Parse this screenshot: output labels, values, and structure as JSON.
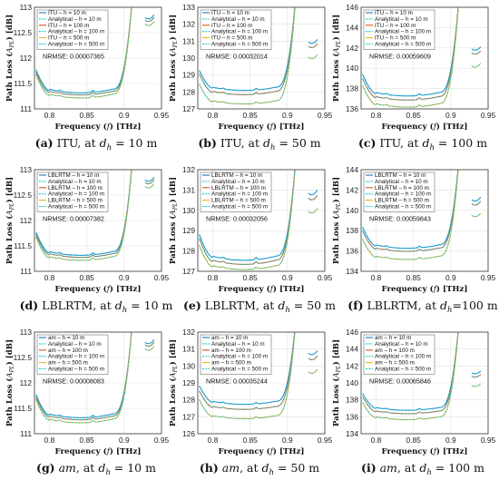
{
  "colors": {
    "h10": "#1f77c4",
    "h100": "#d9541a",
    "h500": "#eeb11f",
    "analytical": "#00c8d4"
  },
  "chart_data": [
    {
      "id": "a",
      "type": "line",
      "caption_parts": [
        "(a)",
        " ITU, at ",
        "d",
        "h",
        " = 10 m"
      ],
      "ylim": [
        111,
        113
      ],
      "yticks": [
        111,
        111.5,
        112,
        112.5,
        113
      ],
      "ytick_labels": [
        "111",
        "111.5",
        "112",
        "112.5",
        "113"
      ],
      "xlim": [
        0.78,
        0.95
      ],
      "xticks": [
        0.8,
        0.85,
        0.9,
        0.95
      ],
      "xtick_labels": [
        "0.8",
        "0.85",
        "0.9",
        "0.95"
      ],
      "xlabel": "Frequency (f) [THz]",
      "ylabel": "Path Loss (A_PL) [dB]",
      "nrmse": "NRMSE: 0.00007365",
      "legend": [
        "ITU – h = 10 m",
        "Analytical – h = 10 m",
        "ITU – h = 100 m",
        "Analytical – h = 100 m",
        "ITU – h = 500 m",
        "Analytical – h = 500 m"
      ],
      "series": [
        {
          "name": "h = 10 m",
          "min": 111.3,
          "high": 112.05,
          "win": [
            112.75,
            112.85
          ]
        },
        {
          "name": "h = 100 m",
          "min": 111.26,
          "high": 112.0,
          "win": [
            112.7,
            112.8
          ]
        },
        {
          "name": "h = 500 m",
          "min": 111.2,
          "high": 111.95,
          "win": [
            112.62,
            112.72
          ]
        }
      ]
    },
    {
      "id": "b",
      "type": "line",
      "caption_parts": [
        "(b)",
        " ITU, at ",
        "d",
        "h",
        " = 50 m"
      ],
      "ylim": [
        127,
        133
      ],
      "yticks": [
        127,
        128,
        129,
        130,
        131,
        132,
        133
      ],
      "ytick_labels": [
        "127",
        "128",
        "129",
        "130",
        "131",
        "132",
        "133"
      ],
      "xlim": [
        0.78,
        0.95
      ],
      "xticks": [
        0.8,
        0.85,
        0.9,
        0.95
      ],
      "xtick_labels": [
        "0.8",
        "0.85",
        "0.9",
        "0.95"
      ],
      "xlabel": "Frequency (f) [THz]",
      "ylabel": "Path Loss (A_PL) [dB]",
      "nrmse": "NRMSE: 0.00032014",
      "legend": [
        "ITU – h = 10 m",
        "Analytical – h = 10 m",
        "ITU – h = 100 m",
        "Analytical – h = 100 m",
        "ITU – h = 500 m",
        "Analytical – h = 500 m"
      ],
      "series": [
        {
          "name": "h = 10 m",
          "min": 128.05,
          "high": 130.0,
          "win": [
            130.8,
            131.1
          ]
        },
        {
          "name": "h = 100 m",
          "min": 127.8,
          "high": 129.8,
          "win": [
            130.55,
            130.85
          ]
        },
        {
          "name": "h = 500 m",
          "min": 127.25,
          "high": 129.2,
          "win": [
            129.9,
            130.2
          ]
        }
      ]
    },
    {
      "id": "c",
      "type": "line",
      "caption_parts": [
        "(c)",
        " ITU, at ",
        "d",
        "h",
        " = 100 m"
      ],
      "ylim": [
        136,
        146
      ],
      "yticks": [
        136,
        138,
        140,
        142,
        144,
        146
      ],
      "ytick_labels": [
        "136",
        "138",
        "140",
        "142",
        "144",
        "146"
      ],
      "xlim": [
        0.78,
        0.95
      ],
      "xticks": [
        0.8,
        0.85,
        0.9,
        0.95
      ],
      "xtick_labels": [
        "0.8",
        "0.85",
        "0.9",
        "0.95"
      ],
      "xlabel": "Frequency (f) [THz]",
      "ylabel": "Path Loss (A_PL) [dB]",
      "nrmse": "NRMSE: 0.00059609",
      "legend": [
        "ITU – h = 10 m",
        "Analytical – h = 10 m",
        "ITU – h = 100 m",
        "Analytical – h = 100 m",
        "ITU – h = 500 m",
        "Analytical – h = 500 m"
      ],
      "series": [
        {
          "name": "h = 10 m",
          "min": 137.2,
          "high": 140.7,
          "win": [
            141.7,
            142.1
          ]
        },
        {
          "name": "h = 100 m",
          "min": 136.8,
          "high": 140.3,
          "win": [
            141.3,
            141.7
          ]
        },
        {
          "name": "h = 500 m",
          "min": 136.1,
          "high": 139.6,
          "win": [
            140.0,
            140.5
          ]
        }
      ]
    },
    {
      "id": "d",
      "type": "line",
      "caption_parts": [
        "(d)",
        " LBLRTM, at ",
        "d",
        "h",
        " = 10 m"
      ],
      "ylim": [
        111,
        113
      ],
      "yticks": [
        111,
        111.5,
        112,
        112.5,
        113
      ],
      "ytick_labels": [
        "111",
        "111.5",
        "112",
        "112.5",
        "113"
      ],
      "xlim": [
        0.78,
        0.95
      ],
      "xticks": [
        0.8,
        0.85,
        0.9,
        0.95
      ],
      "xtick_labels": [
        "0.8",
        "0.85",
        "0.9",
        "0.95"
      ],
      "xlabel": "Frequency (f) [THz]",
      "ylabel": "Path Loss (A_PL) [dB]",
      "nrmse": "NRMSE: 0.00007382",
      "legend": [
        "LBLRTM – h = 10 m",
        "Analytical – h = 10 m",
        "LBLRTM – h = 100 m",
        "Analytical – h = 100 m",
        "LBLRTM – h = 500 m",
        "Analytical – h = 500 m"
      ],
      "series": [
        {
          "name": "h = 10 m",
          "min": 111.3,
          "high": 112.05,
          "win": [
            112.75,
            112.85
          ]
        },
        {
          "name": "h = 100 m",
          "min": 111.26,
          "high": 112.0,
          "win": [
            112.7,
            112.8
          ]
        },
        {
          "name": "h = 500 m",
          "min": 111.2,
          "high": 111.95,
          "win": [
            112.62,
            112.72
          ]
        }
      ]
    },
    {
      "id": "e",
      "type": "line",
      "caption_parts": [
        "(e)",
        " LBLRTM, at ",
        "d",
        "h",
        " = 50 m"
      ],
      "ylim": [
        127,
        132
      ],
      "yticks": [
        127,
        128,
        129,
        130,
        131,
        132
      ],
      "ytick_labels": [
        "127",
        "128",
        "129",
        "130",
        "131",
        "132"
      ],
      "xlim": [
        0.78,
        0.95
      ],
      "xticks": [
        0.8,
        0.85,
        0.9,
        0.95
      ],
      "xtick_labels": [
        "0.8",
        "0.85",
        "0.9",
        "0.95"
      ],
      "xlabel": "Frequency (f) [THz]",
      "ylabel": "Path Loss (A_PL) [dB]",
      "nrmse": "NRMSE: 0.00032056",
      "legend": [
        "LBLRTM – h = 10 m",
        "Analytical – h = 10 m",
        "LBLRTM – h = 100 m",
        "Analytical – h = 100 m",
        "LBLRTM – h = 500 m",
        "Analytical – h = 500 m"
      ],
      "series": [
        {
          "name": "h = 10 m",
          "min": 127.5,
          "high": 129.6,
          "win": [
            130.7,
            131.0
          ]
        },
        {
          "name": "h = 100 m",
          "min": 127.3,
          "high": 129.4,
          "win": [
            130.45,
            130.75
          ]
        },
        {
          "name": "h = 500 m",
          "min": 127.05,
          "high": 129.0,
          "win": [
            129.8,
            130.1
          ]
        }
      ]
    },
    {
      "id": "f",
      "type": "line",
      "caption_parts": [
        "(f)",
        " LBLRTM, at ",
        "d",
        "h",
        "=100 m"
      ],
      "ylim": [
        134,
        144
      ],
      "yticks": [
        134,
        136,
        138,
        140,
        142,
        144
      ],
      "ytick_labels": [
        "134",
        "136",
        "138",
        "140",
        "142",
        "144"
      ],
      "xlim": [
        0.78,
        0.95
      ],
      "xticks": [
        0.8,
        0.85,
        0.9,
        0.95
      ],
      "xtick_labels": [
        "0.8",
        "0.85",
        "0.9",
        "0.95"
      ],
      "xlabel": "Frequency (f) [THz]",
      "ylabel": "Path Loss (A_PL) [dB]",
      "nrmse": "NRMSE: 0.00059843",
      "legend": [
        "LBLRTM – h = 10 m",
        "Analytical – h = 10 m",
        "LBLRTM – h = 100 m",
        "Analytical – h = 100 m",
        "LBLRTM – h = 500 m",
        "Analytical – h = 500 m"
      ],
      "series": [
        {
          "name": "h = 10 m",
          "min": 136.2,
          "high": 139.6,
          "win": [
            140.8,
            141.3
          ]
        },
        {
          "name": "h = 100 m",
          "min": 135.9,
          "high": 139.2,
          "win": [
            140.4,
            140.9
          ]
        },
        {
          "name": "h = 500 m",
          "min": 135.1,
          "high": 138.4,
          "win": [
            139.3,
            139.7
          ]
        }
      ]
    },
    {
      "id": "g",
      "type": "line",
      "caption_parts": [
        "(g)",
        " am, at ",
        "d",
        "h",
        " = 10 m"
      ],
      "ylim": [
        111,
        113
      ],
      "yticks": [
        111,
        111.5,
        112,
        112.5,
        113
      ],
      "ytick_labels": [
        "111",
        "111.5",
        "112",
        "112.5",
        "113"
      ],
      "xlim": [
        0.78,
        0.95
      ],
      "xticks": [
        0.8,
        0.85,
        0.9,
        0.95
      ],
      "xtick_labels": [
        "0.8",
        "0.85",
        "0.9",
        "0.95"
      ],
      "xlabel": "Frequency (f) [THz]",
      "ylabel": "Path Loss (A_PL) [dB]",
      "nrmse": "NRMSE: 0.00008083",
      "legend": [
        "am – h = 10 m",
        "Analytical – h = 10 m",
        "am – h = 100 m",
        "Analytical – h = 100 m",
        "am – h = 500 m",
        "Analytical – h = 500 m"
      ],
      "series": [
        {
          "name": "h = 10 m",
          "min": 111.3,
          "high": 112.05,
          "win": [
            112.75,
            112.85
          ]
        },
        {
          "name": "h = 100 m",
          "min": 111.26,
          "high": 112.0,
          "win": [
            112.7,
            112.8
          ]
        },
        {
          "name": "h = 500 m",
          "min": 111.2,
          "high": 111.95,
          "win": [
            112.62,
            112.72
          ]
        }
      ]
    },
    {
      "id": "h",
      "type": "line",
      "caption_parts": [
        "(h)",
        " am, at ",
        "d",
        "h",
        " = 50 m"
      ],
      "ylim": [
        126,
        132
      ],
      "yticks": [
        126,
        127,
        128,
        129,
        130,
        131,
        132
      ],
      "ytick_labels": [
        "126",
        "127",
        "128",
        "129",
        "130",
        "131",
        "132"
      ],
      "xlim": [
        0.78,
        0.95
      ],
      "xticks": [
        0.8,
        0.85,
        0.9,
        0.95
      ],
      "xtick_labels": [
        "0.8",
        "0.85",
        "0.9",
        "0.95"
      ],
      "xlabel": "Frequency (f) [THz]",
      "ylabel": "Path Loss (A_PL) [dB]",
      "nrmse": "NRMSE: 0.00035244",
      "legend": [
        "am – h = 10 m",
        "Analytical – h = 10 m",
        "am – h = 100 m",
        "Analytical – h = 100 m",
        "am – h = 500 m",
        "Analytical – h = 500 m"
      ],
      "series": [
        {
          "name": "h = 10 m",
          "min": 127.7,
          "high": 129.5,
          "win": [
            130.6,
            130.9
          ]
        },
        {
          "name": "h = 100 m",
          "min": 127.4,
          "high": 129.2,
          "win": [
            130.3,
            130.6
          ]
        },
        {
          "name": "h = 500 m",
          "min": 126.85,
          "high": 128.7,
          "win": [
            129.5,
            129.8
          ]
        }
      ]
    },
    {
      "id": "i",
      "type": "line",
      "caption_parts": [
        "(i)",
        " am, at ",
        "d",
        "h",
        " = 100 m"
      ],
      "ylim": [
        134,
        146
      ],
      "yticks": [
        134,
        136,
        138,
        140,
        142,
        144,
        146
      ],
      "ytick_labels": [
        "134",
        "136",
        "138",
        "140",
        "142",
        "144",
        "146"
      ],
      "xlim": [
        0.78,
        0.95
      ],
      "xticks": [
        0.8,
        0.85,
        0.9,
        0.95
      ],
      "xtick_labels": [
        "0.8",
        "0.85",
        "0.9",
        "0.95"
      ],
      "xlabel": "Frequency (f) [THz]",
      "ylabel": "Path Loss (A_PL) [dB]",
      "nrmse": "NRMSE: 0.00065846",
      "legend": [
        "am – h = 10 m",
        "Analytical – h = 10 m",
        "am – h = 100 m",
        "Analytical – h = 100 m",
        "am – h = 500 m",
        "Analytical – h = 500 m"
      ],
      "series": [
        {
          "name": "h = 10 m",
          "min": 136.7,
          "high": 140.0,
          "win": [
            141.0,
            141.4
          ]
        },
        {
          "name": "h = 100 m",
          "min": 136.3,
          "high": 139.6,
          "win": [
            140.6,
            141.0
          ]
        },
        {
          "name": "h = 500 m",
          "min": 135.6,
          "high": 138.9,
          "win": [
            139.5,
            139.9
          ]
        }
      ]
    }
  ]
}
